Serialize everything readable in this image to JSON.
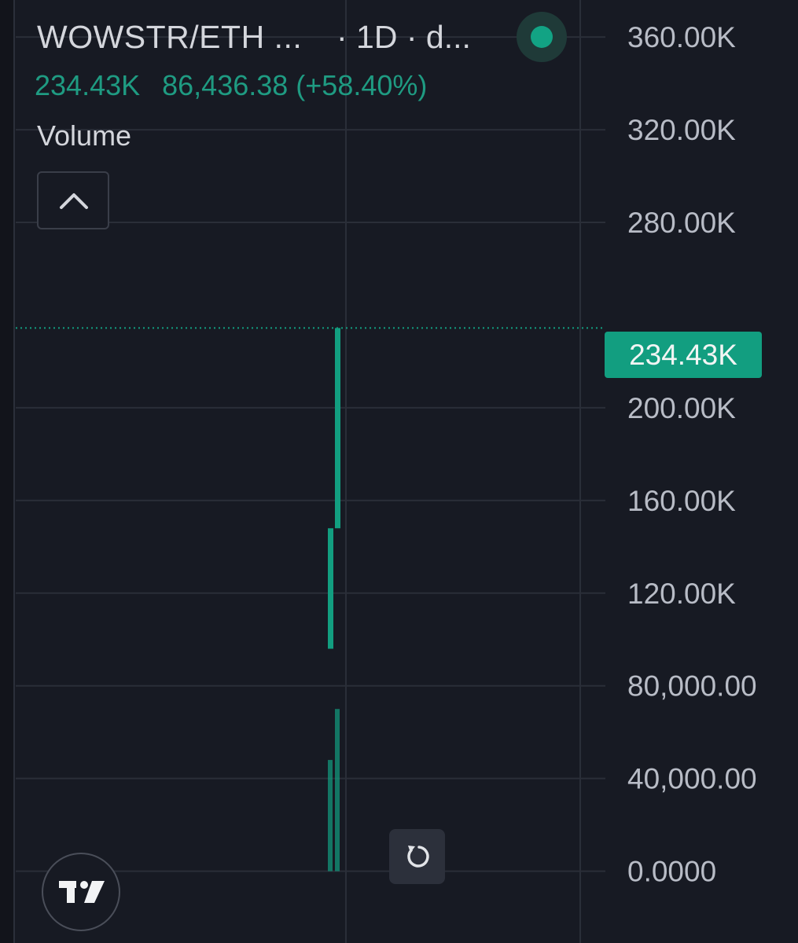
{
  "header": {
    "title": "WOWSTR/ETH ...",
    "interval": "· 1D · d...",
    "status_icon": "live-status-dot"
  },
  "quote": {
    "last": "234.43K",
    "change": "86,436.38 (+58.40%)"
  },
  "indicator": {
    "label": "Volume"
  },
  "colors": {
    "background": "#171a23",
    "grid": "#2a2e38",
    "up": "#129e80",
    "up_text": "#1f9b82",
    "axis_text": "#b8bcc6"
  },
  "chart_data": {
    "type": "bar",
    "title": "",
    "series": [
      {
        "name": "Volume",
        "values": [
          0,
          48000,
          148000,
          234430
        ]
      }
    ],
    "candle_wicks": [
      {
        "low": 0,
        "high": 48000
      },
      {
        "low": 0,
        "high": 70000
      },
      {
        "low": 96000,
        "high": 148000
      },
      {
        "low": 148000,
        "high": 234430
      }
    ],
    "y_ticks": [
      "360.00K",
      "320.00K",
      "280.00K",
      "200.00K",
      "160.00K",
      "120.00K",
      "80,000.00",
      "40,000.00",
      "0.0000"
    ],
    "y_tick_values": [
      360000,
      320000,
      280000,
      200000,
      160000,
      120000,
      80000,
      40000,
      0
    ],
    "ylim": [
      -31000,
      376000
    ],
    "last_value": 234430,
    "last_value_label": "234.43K",
    "grid": true,
    "y_axis": "right"
  },
  "controls": {
    "collapse_icon": "chevron-up-icon",
    "reset_icon": "reset-rotate-icon",
    "logo_icon": "tradingview-logo-icon"
  }
}
